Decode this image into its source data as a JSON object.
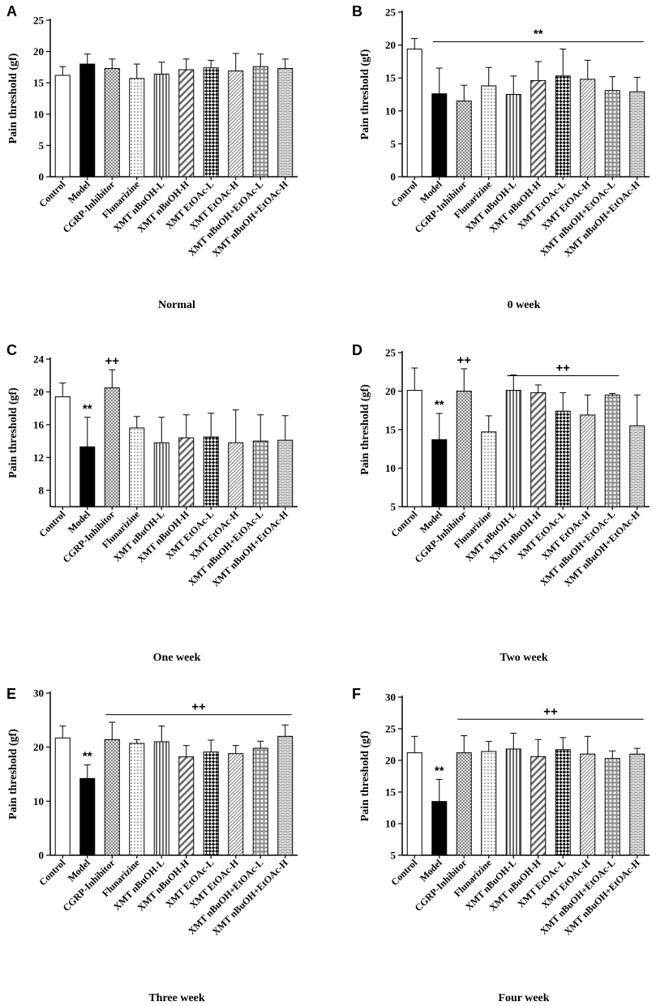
{
  "chart_data": [
    {
      "type": "bar",
      "panel": "A",
      "subtitle": "Normal",
      "ylabel": "Pain threshold (gf)",
      "ylim": [
        0,
        25
      ],
      "yticks": [
        0,
        5,
        10,
        15,
        20,
        25
      ],
      "categories": [
        "Control",
        "Model",
        "CGRP-Inhibitor",
        "Flunarizine",
        "XMT nBuOH-L",
        "XMT nBuOH-H",
        "XMT EtOAc-L",
        "XMT EtOAc-H",
        "XMT nBuOH+EtOAc-L",
        "XMT nBuOH+EtOAc-H"
      ],
      "values": [
        16.2,
        18.0,
        17.3,
        15.7,
        16.4,
        17.1,
        17.4,
        16.9,
        17.6,
        17.3
      ],
      "errors": [
        1.4,
        1.6,
        1.5,
        2.3,
        1.9,
        1.7,
        1.2,
        2.8,
        2.0,
        1.5
      ],
      "annotations": []
    },
    {
      "type": "bar",
      "panel": "B",
      "subtitle": "0 week",
      "ylabel": "Pain threshold (gf)",
      "ylim": [
        0,
        25
      ],
      "yticks": [
        0,
        5,
        10,
        15,
        20,
        25
      ],
      "categories": [
        "Control",
        "Model",
        "CGRP-Inhibitor",
        "Flunarizine",
        "XMT nBuOH-L",
        "XMT nBuOH-H",
        "XMT EtOAc-L",
        "XMT EtOAc-H",
        "XMT nBuOH+EtOAc-L",
        "XMT nBuOH+EtOAc-H"
      ],
      "values": [
        19.4,
        12.6,
        11.5,
        13.8,
        12.5,
        14.6,
        15.3,
        14.8,
        13.1,
        12.9
      ],
      "errors": [
        1.6,
        3.9,
        2.4,
        2.8,
        2.8,
        2.9,
        4.1,
        2.9,
        2.1,
        2.2
      ],
      "annotations": [
        {
          "text": "**",
          "from_index": 1,
          "to_index": 9,
          "line_at": 20.5
        }
      ]
    },
    {
      "type": "bar",
      "panel": "C",
      "subtitle": "One week",
      "ylabel": "Pain threshold (gf)",
      "ylim": [
        6,
        24
      ],
      "yticks": [
        8,
        12,
        16,
        20,
        24
      ],
      "categories": [
        "Control",
        "Model",
        "CGRP-Inhibitor",
        "Flunarizine",
        "XMT nBuOH-L",
        "XMT nBuOH-H",
        "XMT EtOAc-L",
        "XMT EtOAc-H",
        "XMT nBuOH+EtOAc-L",
        "XMT nBuOH+EtOAc-H"
      ],
      "values": [
        19.4,
        13.3,
        20.5,
        15.6,
        13.8,
        14.4,
        14.5,
        13.8,
        14.0,
        14.1
      ],
      "errors": [
        1.7,
        3.6,
        2.2,
        1.4,
        3.1,
        2.8,
        2.9,
        4.0,
        3.2,
        3.0
      ],
      "annotations": [
        {
          "text": "**",
          "index": 1
        },
        {
          "text": "++",
          "index": 2
        }
      ]
    },
    {
      "type": "bar",
      "panel": "D",
      "subtitle": "Two week",
      "ylabel": "Pain threshold (gf)",
      "ylim": [
        5,
        25
      ],
      "yticks": [
        5,
        10,
        15,
        20,
        25
      ],
      "categories": [
        "Control",
        "Model",
        "CGRP-Inhibitor",
        "Flunarizine",
        "XMT nBuOH-L",
        "XMT nBuOH-H",
        "XMT EtOAc-L",
        "XMT EtOAc-H",
        "XMT nBuOH+EtOAc-L",
        "XMT nBuOH+EtOAc-H"
      ],
      "values": [
        20.1,
        13.7,
        20.0,
        14.7,
        20.1,
        19.8,
        17.4,
        16.9,
        19.5,
        15.5
      ],
      "errors": [
        2.9,
        3.4,
        2.9,
        2.1,
        2.0,
        1.0,
        2.4,
        2.6,
        0.2,
        4.0
      ],
      "annotations": [
        {
          "text": "**",
          "index": 1
        },
        {
          "text": "++",
          "index": 2
        },
        {
          "text": "++",
          "from_index": 4,
          "to_index": 8,
          "line_at": 22.0
        }
      ]
    },
    {
      "type": "bar",
      "panel": "E",
      "subtitle": "Three week",
      "ylabel": "Pain threshold (gf)",
      "ylim": [
        0,
        30
      ],
      "yticks": [
        0,
        10,
        20,
        30
      ],
      "categories": [
        "Control",
        "Model",
        "CGRP-Inhibitor",
        "Flunarizine",
        "XMT nBuOH-L",
        "XMT nBuOH-H",
        "XMT EtOAc-L",
        "XMT EtOAc-H",
        "XMT nBuOH+EtOAc-L",
        "XMT nBuOH+EtOAc-H"
      ],
      "values": [
        21.7,
        14.2,
        21.4,
        20.7,
        21.0,
        18.2,
        19.1,
        18.8,
        19.8,
        22.0
      ],
      "errors": [
        2.2,
        2.5,
        3.2,
        0.7,
        2.9,
        2.1,
        2.2,
        1.5,
        1.3,
        2.1
      ],
      "annotations": [
        {
          "text": "**",
          "index": 1
        },
        {
          "text": "++",
          "from_index": 2,
          "to_index": 9,
          "line_at": 26.0
        }
      ]
    },
    {
      "type": "bar",
      "panel": "F",
      "subtitle": "Four week",
      "ylabel": "Pain threshold (gf)",
      "ylim": [
        5,
        30
      ],
      "yticks": [
        5,
        10,
        15,
        20,
        25,
        30
      ],
      "categories": [
        "Control",
        "Model",
        "CGRP-Inhibitor",
        "Flunarizine",
        "XMT nBuOH-L",
        "XMT nBuOH-H",
        "XMT EtOAc-L",
        "XMT EtOAc-H",
        "XMT nBuOH+EtOAc-L",
        "XMT nBuOH+EtOAc-H"
      ],
      "values": [
        21.2,
        13.5,
        21.2,
        21.4,
        21.8,
        20.6,
        21.7,
        21.0,
        20.3,
        21.0
      ],
      "errors": [
        2.6,
        3.5,
        2.7,
        1.6,
        2.5,
        2.7,
        1.9,
        2.8,
        1.2,
        0.9
      ],
      "annotations": [
        {
          "text": "**",
          "index": 1
        },
        {
          "text": "++",
          "from_index": 2,
          "to_index": 9,
          "line_at": 26.5
        }
      ]
    }
  ],
  "styles": {
    "fills": [
      "white",
      "black",
      "crosshatch",
      "dots",
      "vstripes",
      "diag",
      "checker",
      "diagfine",
      "grid",
      "brick"
    ],
    "axis_color": "#000000"
  }
}
